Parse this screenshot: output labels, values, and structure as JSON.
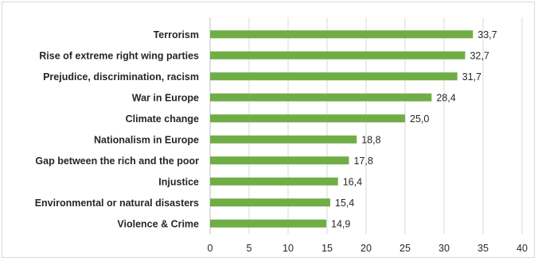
{
  "chart_data": {
    "type": "bar",
    "orientation": "horizontal",
    "categories": [
      "Terrorism",
      "Rise of extreme right wing parties",
      "Prejudice, discrimination, racism",
      "War in Europe",
      "Climate change",
      "Nationalism in Europe",
      "Gap between the rich and the poor",
      "Injustice",
      "Environmental or natural disasters",
      "Violence & Crime"
    ],
    "values": [
      33.7,
      32.7,
      31.7,
      28.4,
      25.0,
      18.8,
      17.8,
      16.4,
      15.4,
      14.9
    ],
    "value_labels": [
      "33,7",
      "32,7",
      "31,7",
      "28,4",
      "25,0",
      "18,8",
      "17,8",
      "16,4",
      "15,4",
      "14,9"
    ],
    "xlim": [
      0,
      40
    ],
    "x_ticks": [
      "0",
      "5",
      "10",
      "15",
      "20",
      "25",
      "30",
      "35",
      "40"
    ],
    "grid": true,
    "bar_color": "#70ad47",
    "title": "",
    "xlabel": "",
    "ylabel": ""
  }
}
